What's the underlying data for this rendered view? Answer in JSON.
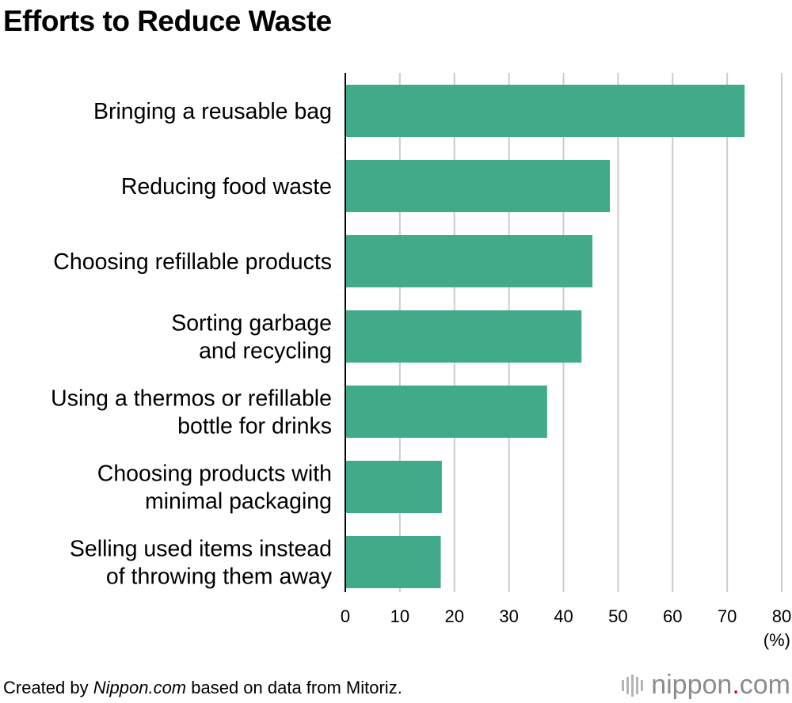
{
  "title": "Efforts to Reduce Waste",
  "footer": {
    "prefix": "Created by ",
    "site": "Nippon.com",
    "suffix": " based on data from Mitoriz."
  },
  "logo": {
    "main": "nippon",
    "dot": ".",
    "tld": "com"
  },
  "colors": {
    "bar": "#40aa8b",
    "grid": "#cccccc",
    "axis": "#000000",
    "logo_dot": "#e60012",
    "logo_text": "#8c8c8c"
  },
  "chart_data": {
    "type": "bar",
    "orientation": "horizontal",
    "categories": [
      [
        "Bringing a reusable bag"
      ],
      [
        "Reducing food waste"
      ],
      [
        "Choosing refillable products"
      ],
      [
        "Sorting garbage",
        "and recycling"
      ],
      [
        "Using a thermos or refillable",
        "bottle for drinks"
      ],
      [
        "Choosing products with",
        "minimal packaging"
      ],
      [
        "Selling used items instead",
        "of throwing them away"
      ]
    ],
    "values": [
      73.2,
      48.5,
      45.3,
      43.3,
      37.0,
      17.7,
      17.5
    ],
    "xlim": [
      0,
      80
    ],
    "xticks": [
      0,
      10,
      20,
      30,
      40,
      50,
      60,
      70,
      80
    ],
    "xunit": "(%)",
    "grid": true
  }
}
